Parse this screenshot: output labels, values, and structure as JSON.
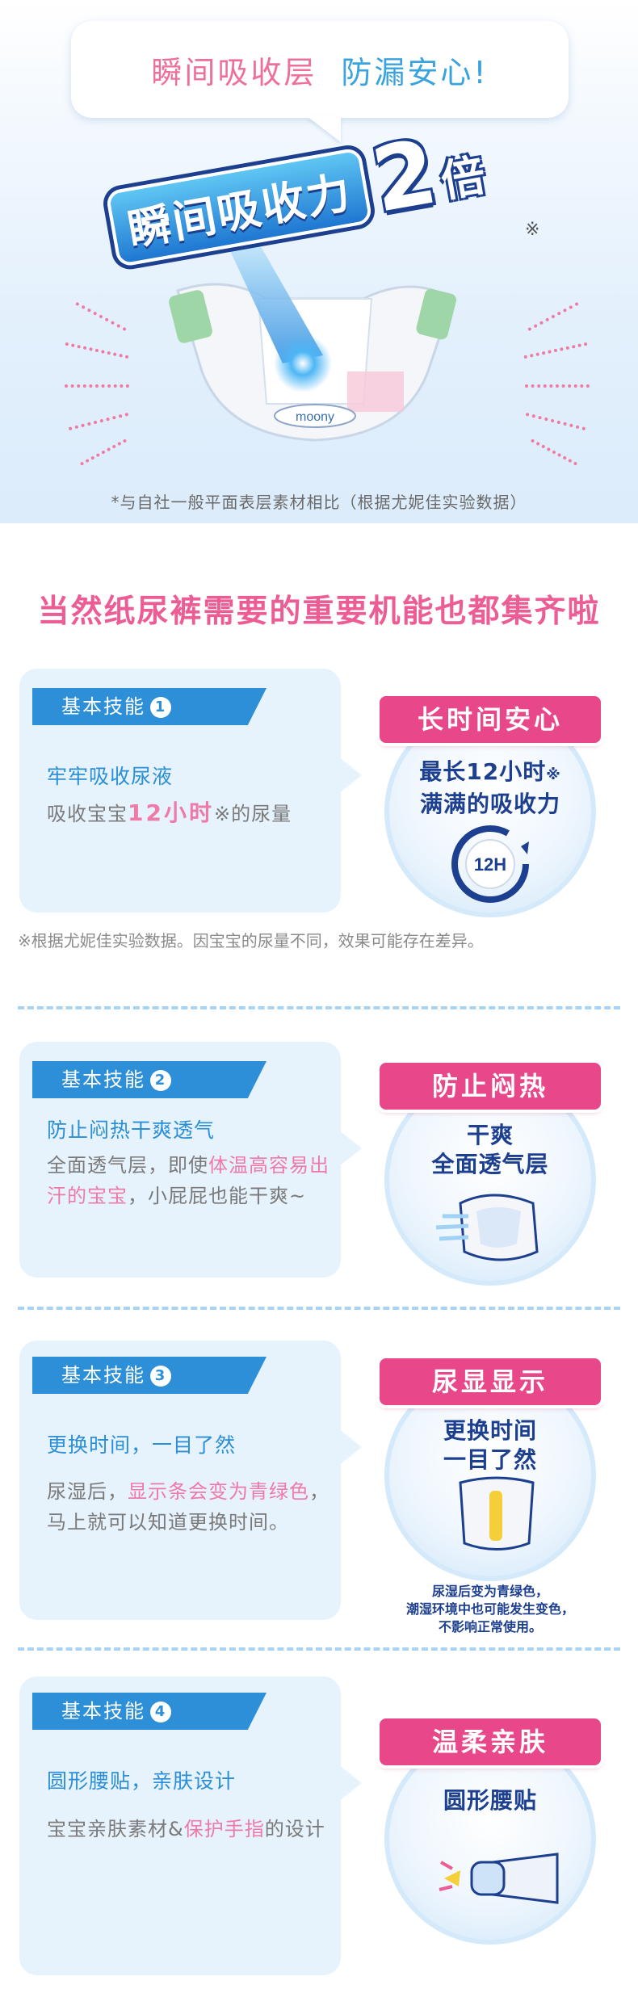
{
  "hero": {
    "bubble_left": "瞬间吸收层",
    "bubble_right": "防漏安心!",
    "headline_text": "瞬间吸收力",
    "headline_number": "2",
    "headline_suffix": "倍",
    "headline_mark": "※",
    "diaper_brand": "moony",
    "caption": "*与自社一般平面表层素材相比（根据尤妮佳实验数据）"
  },
  "section": {
    "title": "当然纸尿裤需要的重要机能也都集齐啦"
  },
  "features": [
    {
      "tag": "基本技能",
      "num": "1",
      "title": "牢牢吸收尿液",
      "desc_prefix": "吸收宝宝",
      "desc_highlight": "12小时",
      "desc_suffix": "※的尿量",
      "badge": "长时间安心",
      "circle_line1": "最长12小时",
      "circle_mark": "※",
      "circle_line2": "满满的吸收力",
      "clock_label": "12H",
      "footnote": "※根据尤妮佳实验数据。因宝宝的尿量不同，效果可能存在差异。"
    },
    {
      "tag": "基本技能",
      "num": "2",
      "title": "防止闷热干爽透气",
      "desc_prefix": "全面透气层，即使",
      "desc_highlight": "体温高容易出汗的宝宝",
      "desc_suffix": "，小屁屁也能干爽~",
      "badge": "防止闷热",
      "circle_line1": "干爽",
      "circle_line2": "全面透气层"
    },
    {
      "tag": "基本技能",
      "num": "3",
      "title": "更换时间，一目了然",
      "desc_prefix": "尿湿后，",
      "desc_highlight": "显示条会变为青绿色",
      "desc_suffix": "，马上就可以知道更换时间。",
      "badge": "尿显显示",
      "circle_line1": "更换时间",
      "circle_line2": "一目了然",
      "circle_note_1": "尿湿后变为青绿色，",
      "circle_note_2": "潮湿环境中也可能发生变色，",
      "circle_note_3": "不影响正常使用。"
    },
    {
      "tag": "基本技能",
      "num": "4",
      "title": "圆形腰贴，亲肤设计",
      "desc_prefix": "宝宝亲肤素材&",
      "desc_highlight": "保护手指",
      "desc_suffix": "的设计",
      "badge": "温柔亲肤",
      "circle_line1": "圆形腰贴"
    }
  ],
  "colors": {
    "pink": "#ec5c95",
    "blue": "#2b8fd6",
    "navy": "#1d3f8f",
    "card_bg": "#e6f2fc"
  }
}
